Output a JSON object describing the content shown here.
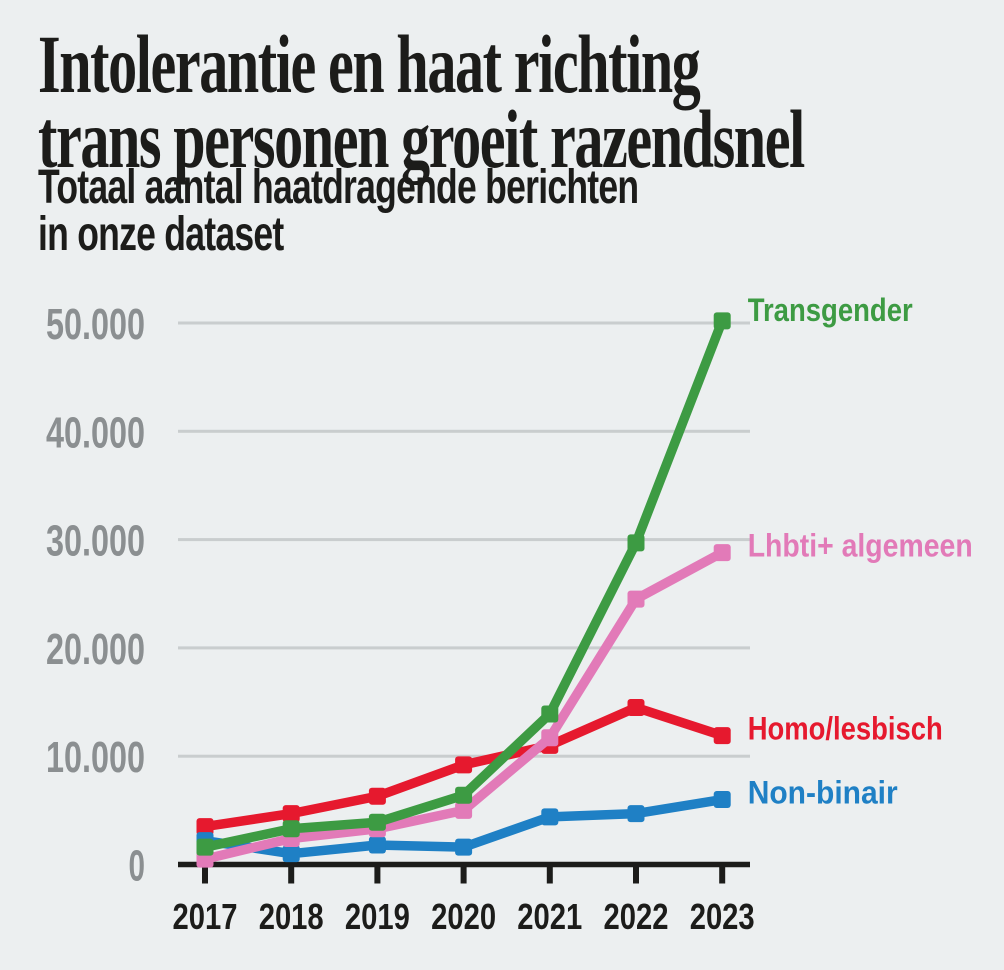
{
  "header": {
    "title_line1": "Intolerantie en haat richting",
    "title_line2": "trans personen groeit razendsnel",
    "subtitle_line1": "Totaal aantal haatdragende berichten",
    "subtitle_line2": "in onze dataset"
  },
  "colors": {
    "background": "#eceff0",
    "text": "#1c1c1a",
    "axis": "#1c1c1a",
    "gridline": "#c9cdce",
    "ytick_label": "#8b8f91",
    "transgender": "#3d9b43",
    "lhbti_algemeen": "#e27ab8",
    "homo_lesbisch": "#e6192e",
    "non_binair": "#1f80c5"
  },
  "chart_data": {
    "type": "line",
    "title": "Intolerantie en haat richting trans personen groeit razendsnel",
    "subtitle": "Totaal aantal haatdragende berichten in onze dataset",
    "x": [
      2017,
      2018,
      2019,
      2020,
      2021,
      2022,
      2023
    ],
    "xtick_labels": [
      "2017",
      "2018",
      "2019",
      "2020",
      "2021",
      "2022",
      "2023"
    ],
    "series": [
      {
        "name": "Transgender",
        "color": "#3d9b43",
        "values": [
          1600,
          3300,
          3900,
          6400,
          13900,
          29700,
          50200
        ]
      },
      {
        "name": "Lhbti+ algemeen",
        "color": "#e27ab8",
        "values": [
          500,
          2400,
          3300,
          5000,
          11700,
          24500,
          28800
        ]
      },
      {
        "name": "Homo/lesbisch",
        "color": "#e6192e",
        "values": [
          3500,
          4700,
          6300,
          9200,
          11000,
          14500,
          11900
        ]
      },
      {
        "name": "Non-binair",
        "color": "#1f80c5",
        "values": [
          2200,
          1000,
          1800,
          1600,
          4400,
          4700,
          6000
        ]
      }
    ],
    "ylim": [
      0,
      50000
    ],
    "ytick_values": [
      0,
      10000,
      20000,
      30000,
      40000,
      50000
    ],
    "ytick_labels": [
      "0",
      "10.000",
      "20.000",
      "30.000",
      "40.000",
      "50.000"
    ],
    "grid": true,
    "legend_position": "labels-at-line-ends"
  }
}
